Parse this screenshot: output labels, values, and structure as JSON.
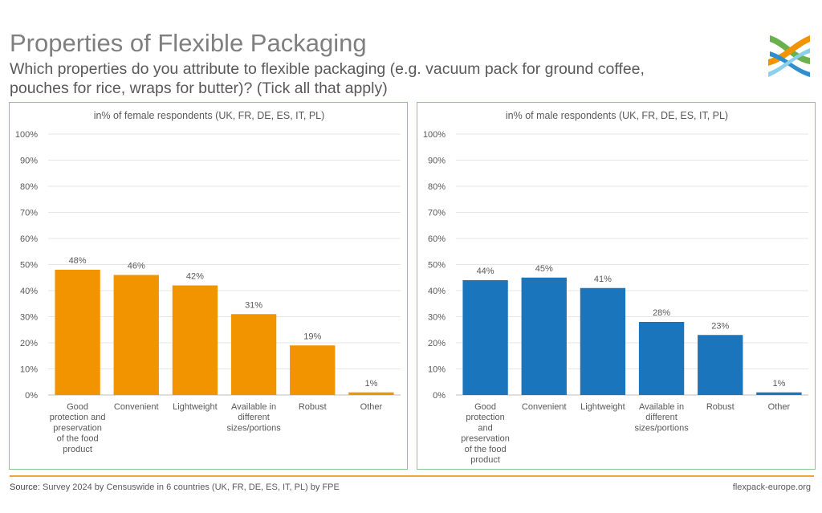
{
  "header": {
    "title": "Properties of Flexible Packaging",
    "subtitle": "Which properties do you attribute to flexible packaging (e.g. vacuum pack for ground coffee, pouches for rice, wraps for butter)? (Tick all that apply)"
  },
  "footer": {
    "source_label": "Source:",
    "source_text": " Survey 2024 by Censuswide in 6 countries (UK, FR, DE, ES, IT, PL) by FPE",
    "site": "flexpack-europe.org"
  },
  "chart_data": [
    {
      "type": "bar",
      "title": "in% of female respondents (UK, FR, DE, ES, IT, PL)",
      "categories": [
        "Good protection and preservation of the food product",
        "Convenient",
        "Lightweight",
        "Available in different sizes/portions",
        "Robust",
        "Other"
      ],
      "category_lines": [
        [
          "Good",
          "protection and",
          "preservation",
          "of the food",
          "product"
        ],
        [
          "Convenient"
        ],
        [
          "Lightweight"
        ],
        [
          "Available in",
          "different",
          "sizes/portions"
        ],
        [
          "Robust"
        ],
        [
          "Other"
        ]
      ],
      "values": [
        48,
        46,
        42,
        31,
        19,
        1
      ],
      "data_labels": [
        "48%",
        "46%",
        "42%",
        "31%",
        "19%",
        "1%"
      ],
      "yticks": [
        "0%",
        "10%",
        "20%",
        "30%",
        "40%",
        "50%",
        "60%",
        "70%",
        "80%",
        "90%",
        "100%"
      ],
      "ylim": [
        0,
        100
      ],
      "color": "#f29400",
      "grid": true
    },
    {
      "type": "bar",
      "title": "in% of male respondents (UK, FR, DE, ES, IT, PL)",
      "categories": [
        "Good protection and preservation of the food product",
        "Convenient",
        "Lightweight",
        "Available in different sizes/portions",
        "Robust",
        "Other"
      ],
      "category_lines": [
        [
          "Good",
          "protection",
          "and",
          "preservation",
          "of the food",
          "product"
        ],
        [
          "Convenient"
        ],
        [
          "Lightweight"
        ],
        [
          "Available in",
          "different",
          "sizes/portions"
        ],
        [
          "Robust"
        ],
        [
          "Other"
        ]
      ],
      "values": [
        44,
        45,
        41,
        28,
        23,
        1
      ],
      "data_labels": [
        "44%",
        "45%",
        "41%",
        "28%",
        "23%",
        "1%"
      ],
      "yticks": [
        "0%",
        "10%",
        "20%",
        "30%",
        "40%",
        "50%",
        "60%",
        "70%",
        "80%",
        "90%",
        "100%"
      ],
      "ylim": [
        0,
        100
      ],
      "color": "#1b75bc",
      "grid": true
    }
  ]
}
